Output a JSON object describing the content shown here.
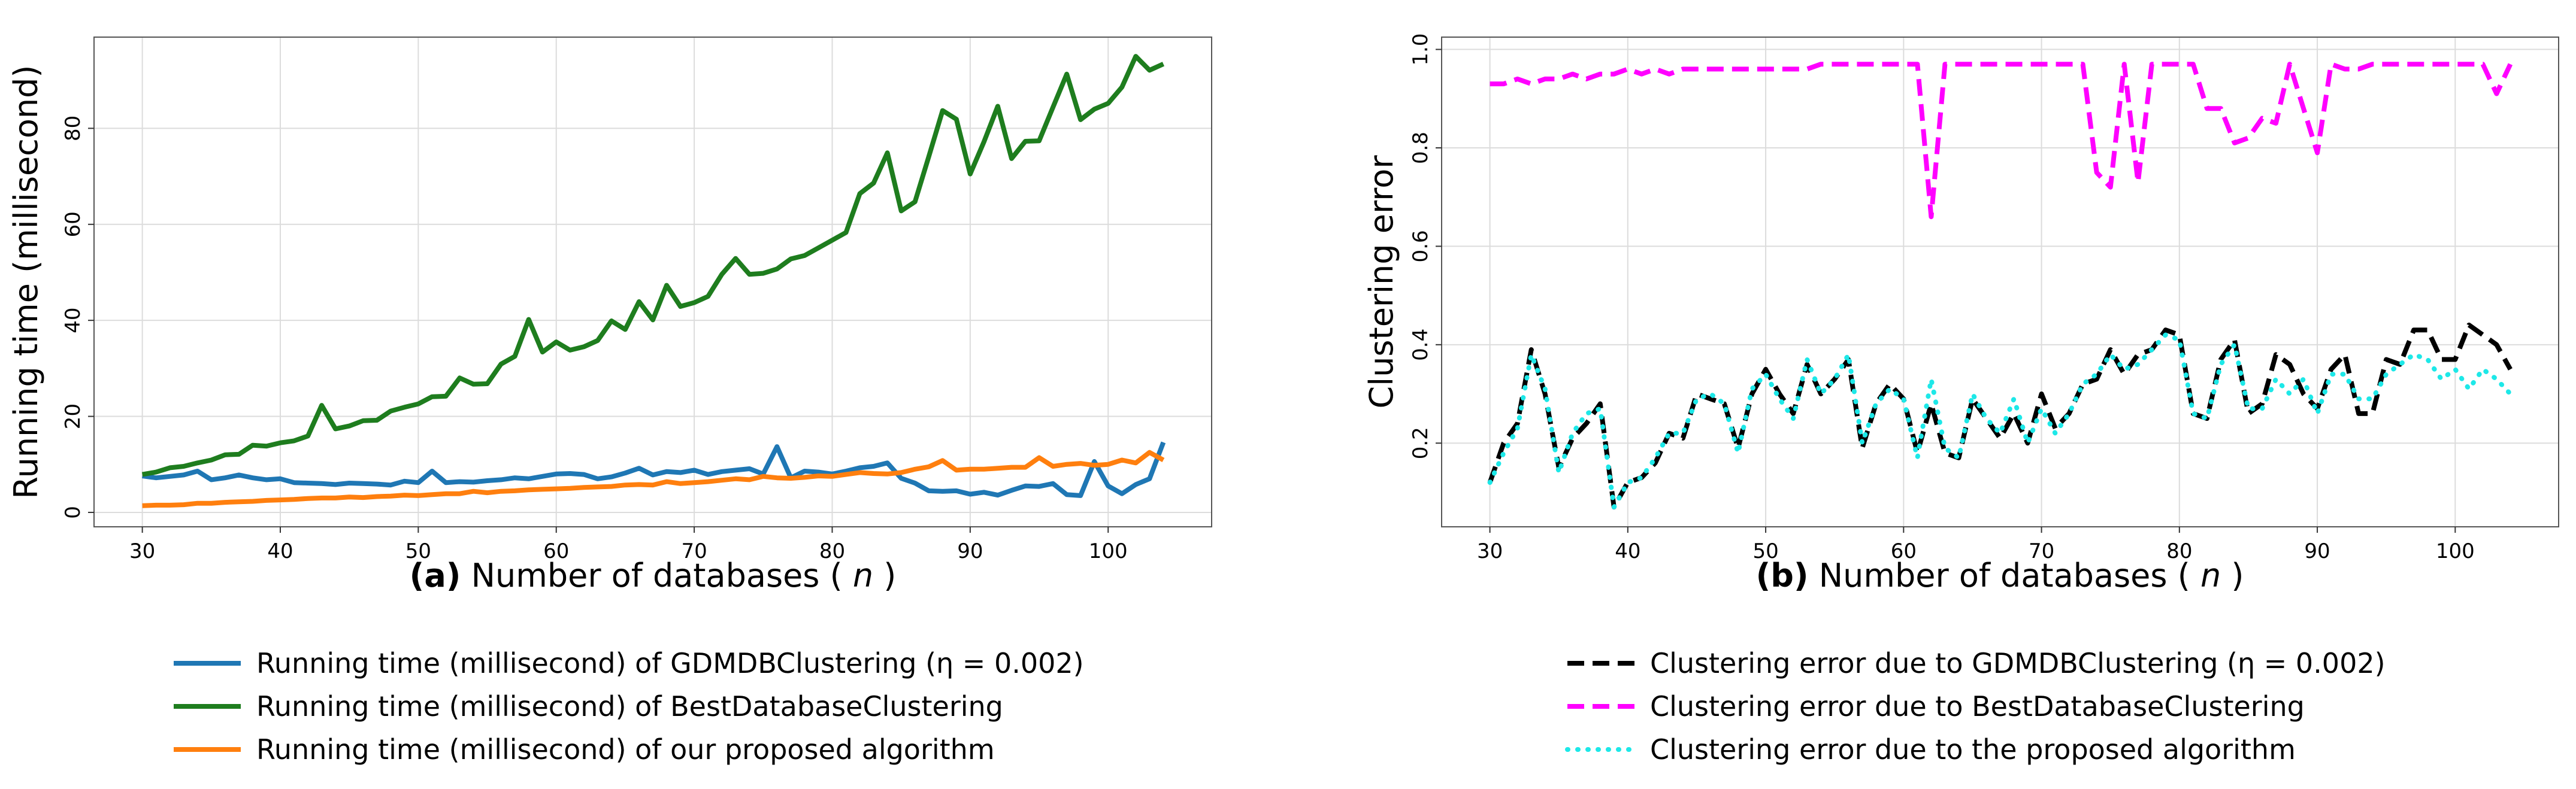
{
  "chart_data": [
    {
      "type": "line",
      "panel_label": "(a)",
      "xlabel_prefix": "Number of databases (",
      "xlabel_var": "n",
      "xlabel_suffix": ")",
      "ylabel": "Running time (millisecond)",
      "xlim": [
        26.5,
        107.5
      ],
      "ylim": [
        -3,
        99
      ],
      "xticks": [
        30,
        40,
        50,
        60,
        70,
        80,
        90,
        100
      ],
      "yticks": [
        0,
        20,
        40,
        60,
        80
      ],
      "grid": true,
      "legend_position": "below",
      "x": [
        30,
        31,
        32,
        33,
        34,
        35,
        36,
        37,
        38,
        39,
        40,
        41,
        42,
        43,
        44,
        45,
        46,
        47,
        48,
        49,
        50,
        51,
        52,
        53,
        54,
        55,
        56,
        57,
        58,
        59,
        60,
        61,
        62,
        63,
        64,
        65,
        66,
        67,
        68,
        69,
        70,
        71,
        72,
        73,
        74,
        75,
        76,
        77,
        78,
        79,
        80,
        81,
        82,
        83,
        84,
        85,
        86,
        87,
        88,
        89,
        90,
        91,
        92,
        93,
        94,
        95,
        96,
        97,
        98,
        99,
        100,
        101,
        102,
        103,
        104
      ],
      "series": [
        {
          "name": "Running time (millisecond) of GDMDBClustering (η = 0.002)",
          "color": "#1f77b4",
          "dash": "solid",
          "values": [
            7.6,
            7.2,
            7.5,
            7.8,
            8.6,
            6.8,
            7.2,
            7.8,
            7.2,
            6.8,
            7.0,
            6.2,
            6.1,
            6.0,
            5.8,
            6.1,
            6.0,
            5.9,
            5.7,
            6.5,
            6.2,
            8.6,
            6.2,
            6.4,
            6.3,
            6.6,
            6.8,
            7.2,
            7.0,
            7.5,
            8.0,
            8.1,
            7.9,
            7.0,
            7.4,
            8.2,
            9.2,
            7.8,
            8.5,
            8.3,
            8.8,
            7.9,
            8.5,
            8.8,
            9.1,
            8.0,
            13.7,
            7.2,
            8.6,
            8.4,
            8.0,
            8.6,
            9.3,
            9.6,
            10.3,
            7.1,
            6.1,
            4.5,
            4.4,
            4.5,
            3.8,
            4.2,
            3.6,
            4.6,
            5.5,
            5.4,
            6.0,
            3.7,
            3.5,
            10.6,
            5.5,
            3.9,
            5.8,
            7.0,
            14.6
          ]
        },
        {
          "name": "Running time (millisecond) of BestDatabaseClustering",
          "color": "#1e7d1e",
          "dash": "solid",
          "values": [
            7.9,
            8.4,
            9.3,
            9.6,
            10.3,
            10.9,
            12.0,
            12.1,
            14.0,
            13.8,
            14.5,
            14.9,
            15.9,
            22.3,
            17.4,
            18.0,
            19.1,
            19.2,
            21.1,
            21.9,
            22.6,
            24.1,
            24.2,
            28.0,
            26.7,
            26.8,
            30.9,
            32.5,
            40.2,
            33.4,
            35.5,
            33.8,
            34.5,
            35.8,
            39.9,
            38.1,
            43.9,
            40.1,
            47.3,
            42.9,
            43.7,
            45.0,
            49.6,
            52.9,
            49.6,
            49.8,
            50.7,
            52.8,
            53.5,
            55.1,
            56.7,
            58.3,
            66.4,
            68.6,
            74.9,
            62.8,
            64.7,
            74.1,
            83.7,
            81.9,
            70.5,
            77.2,
            84.6,
            73.7,
            77.3,
            77.4,
            84.4,
            91.3,
            81.8,
            84.0,
            85.2,
            88.6,
            95.0,
            92.1,
            93.4
          ]
        },
        {
          "name": "Running time (millisecond) of our proposed algorithm",
          "color": "#ff7f0e",
          "dash": "solid",
          "values": [
            1.4,
            1.5,
            1.5,
            1.6,
            1.9,
            1.9,
            2.1,
            2.2,
            2.3,
            2.5,
            2.6,
            2.7,
            2.9,
            3.0,
            3.0,
            3.2,
            3.1,
            3.3,
            3.4,
            3.6,
            3.5,
            3.7,
            3.9,
            3.9,
            4.4,
            4.1,
            4.4,
            4.5,
            4.7,
            4.8,
            4.9,
            5.0,
            5.2,
            5.3,
            5.4,
            5.7,
            5.8,
            5.7,
            6.4,
            6.0,
            6.2,
            6.4,
            6.7,
            7.0,
            6.8,
            7.5,
            7.2,
            7.1,
            7.3,
            7.6,
            7.5,
            7.9,
            8.3,
            8.1,
            8.0,
            8.3,
            9.0,
            9.5,
            10.8,
            8.8,
            9.0,
            9.0,
            9.2,
            9.4,
            9.4,
            11.4,
            9.6,
            10.0,
            10.2,
            9.8,
            10.0,
            10.9,
            10.3,
            12.5,
            10.9
          ]
        }
      ]
    },
    {
      "type": "line",
      "panel_label": "(b)",
      "xlabel_prefix": "Number of databases (",
      "xlabel_var": "n",
      "xlabel_suffix": ")",
      "ylabel": "Clustering error",
      "xlim": [
        26.5,
        107.5
      ],
      "ylim": [
        0.03,
        1.025
      ],
      "xticks": [
        30,
        40,
        50,
        60,
        70,
        80,
        90,
        100
      ],
      "yticks": [
        0.2,
        0.4,
        0.6,
        0.8,
        1.0
      ],
      "ytick_labels": [
        "0.2",
        "0.4",
        "0.6",
        "0.8",
        "1.0"
      ],
      "grid": true,
      "legend_position": "below",
      "x": [
        30,
        31,
        32,
        33,
        34,
        35,
        36,
        37,
        38,
        39,
        40,
        41,
        42,
        43,
        44,
        45,
        46,
        47,
        48,
        49,
        50,
        51,
        52,
        53,
        54,
        55,
        56,
        57,
        58,
        59,
        60,
        61,
        62,
        63,
        64,
        65,
        66,
        67,
        68,
        69,
        70,
        71,
        72,
        73,
        74,
        75,
        76,
        77,
        78,
        79,
        80,
        81,
        82,
        83,
        84,
        85,
        86,
        87,
        88,
        89,
        90,
        91,
        92,
        93,
        94,
        95,
        96,
        97,
        98,
        99,
        100,
        101,
        102,
        103,
        104
      ],
      "series": [
        {
          "name": "Clustering error due to GDMDBClustering (η = 0.002)",
          "color": "#000000",
          "dash": "dashed",
          "values": [
            0.12,
            0.2,
            0.24,
            0.39,
            0.3,
            0.15,
            0.21,
            0.24,
            0.28,
            0.07,
            0.12,
            0.13,
            0.16,
            0.22,
            0.21,
            0.3,
            0.29,
            0.28,
            0.19,
            0.3,
            0.35,
            0.3,
            0.26,
            0.36,
            0.3,
            0.33,
            0.37,
            0.19,
            0.28,
            0.32,
            0.29,
            0.18,
            0.28,
            0.18,
            0.17,
            0.29,
            0.25,
            0.21,
            0.26,
            0.2,
            0.3,
            0.23,
            0.26,
            0.32,
            0.33,
            0.39,
            0.34,
            0.38,
            0.39,
            0.43,
            0.42,
            0.26,
            0.25,
            0.37,
            0.41,
            0.26,
            0.28,
            0.38,
            0.36,
            0.3,
            0.27,
            0.35,
            0.38,
            0.26,
            0.26,
            0.37,
            0.36,
            0.43,
            0.43,
            0.37,
            0.37,
            0.44,
            0.42,
            0.4,
            0.35
          ]
        },
        {
          "name": "Clustering error due to BestDatabaseClustering",
          "color": "#ff00ff",
          "dash": "dashed",
          "values": [
            0.93,
            0.93,
            0.94,
            0.93,
            0.94,
            0.94,
            0.95,
            0.94,
            0.95,
            0.95,
            0.96,
            0.95,
            0.96,
            0.95,
            0.96,
            0.96,
            0.96,
            0.96,
            0.96,
            0.96,
            0.96,
            0.96,
            0.96,
            0.96,
            0.97,
            0.97,
            0.97,
            0.97,
            0.97,
            0.97,
            0.97,
            0.97,
            0.66,
            0.97,
            0.97,
            0.97,
            0.97,
            0.97,
            0.97,
            0.97,
            0.97,
            0.97,
            0.97,
            0.97,
            0.75,
            0.72,
            0.97,
            0.73,
            0.97,
            0.97,
            0.97,
            0.97,
            0.88,
            0.88,
            0.81,
            0.82,
            0.86,
            0.85,
            0.97,
            0.88,
            0.79,
            0.97,
            0.96,
            0.96,
            0.97,
            0.97,
            0.97,
            0.97,
            0.97,
            0.97,
            0.97,
            0.97,
            0.97,
            0.91,
            0.97
          ]
        },
        {
          "name": "Clustering error due to the proposed algorithm",
          "color": "#1de8e8",
          "dash": "dotted",
          "values": [
            0.12,
            0.18,
            0.23,
            0.38,
            0.31,
            0.14,
            0.22,
            0.26,
            0.27,
            0.07,
            0.12,
            0.13,
            0.17,
            0.22,
            0.22,
            0.29,
            0.3,
            0.28,
            0.18,
            0.31,
            0.34,
            0.29,
            0.25,
            0.37,
            0.3,
            0.33,
            0.38,
            0.2,
            0.28,
            0.31,
            0.29,
            0.17,
            0.33,
            0.19,
            0.17,
            0.3,
            0.25,
            0.22,
            0.29,
            0.2,
            0.27,
            0.22,
            0.26,
            0.32,
            0.34,
            0.38,
            0.35,
            0.36,
            0.39,
            0.42,
            0.41,
            0.26,
            0.25,
            0.36,
            0.4,
            0.27,
            0.27,
            0.33,
            0.3,
            0.33,
            0.26,
            0.34,
            0.34,
            0.29,
            0.29,
            0.34,
            0.36,
            0.38,
            0.37,
            0.33,
            0.35,
            0.31,
            0.35,
            0.33,
            0.3
          ]
        }
      ]
    }
  ]
}
